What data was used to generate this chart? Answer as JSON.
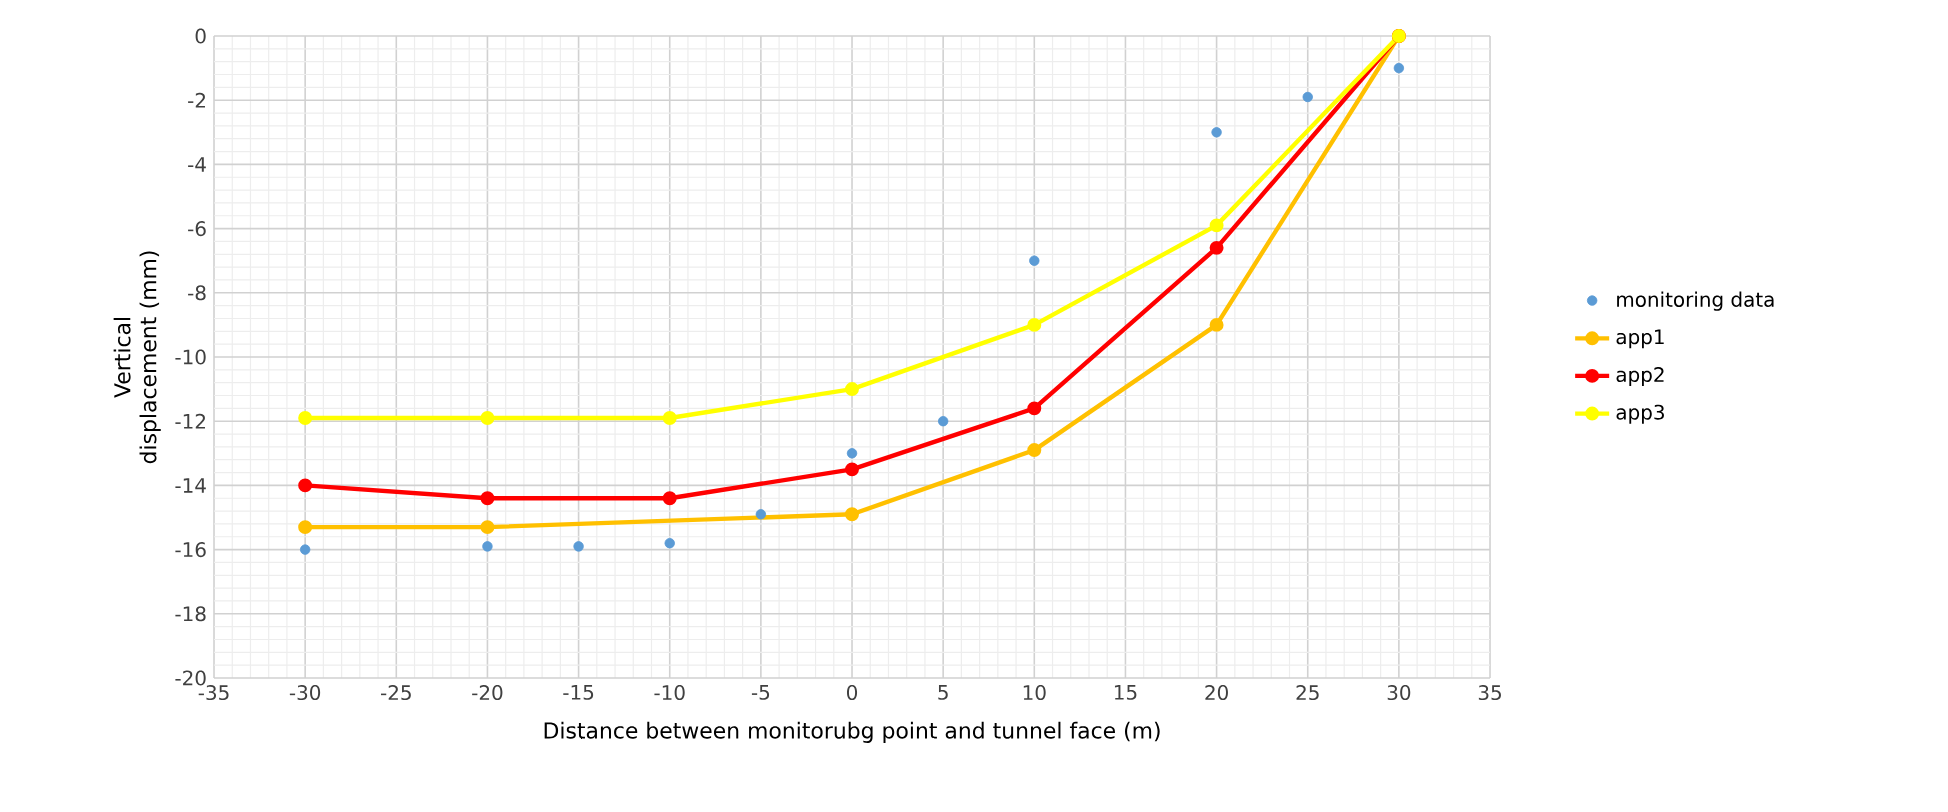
{
  "chart_data": {
    "type": "line",
    "xlabel": "Distance between monitorubg point and tunnel face (m)",
    "ylabel": "Vertical displacement (mm)",
    "xlim": [
      -35,
      35
    ],
    "xticks": [
      -35,
      -30,
      -25,
      -20,
      -15,
      -10,
      -5,
      0,
      5,
      10,
      15,
      20,
      25,
      30,
      35
    ],
    "ylim": [
      -20,
      0
    ],
    "yticks": [
      -20,
      -18,
      -16,
      -14,
      -12,
      -10,
      -8,
      -6,
      -4,
      -2,
      0
    ],
    "grid": true,
    "legend": "right",
    "marker": "circle",
    "series": [
      {
        "name": "monitoring data",
        "type": "scatter",
        "color": "#5b9bd5",
        "x": [
          -30,
          -20,
          -15,
          -10,
          -5,
          0,
          5,
          10,
          20,
          25,
          30
        ],
        "values": [
          -16,
          -15.9,
          -15.9,
          -15.8,
          -14.9,
          -13,
          -12,
          -7,
          -3,
          -1.9,
          -1
        ]
      },
      {
        "name": "app1",
        "color": "#ffc000",
        "x": [
          -30,
          -20,
          0,
          10,
          20,
          30
        ],
        "values": [
          -15.3,
          -15.3,
          -14.9,
          -12.9,
          -9,
          0
        ]
      },
      {
        "name": "app2",
        "color": "#ff0000",
        "x": [
          -30,
          -20,
          -10,
          0,
          10,
          20,
          30
        ],
        "values": [
          -14,
          -14.4,
          -14.4,
          -13.5,
          -11.6,
          -6.6,
          0
        ]
      },
      {
        "name": "app3",
        "color": "#ffff00",
        "x": [
          -30,
          -20,
          -10,
          0,
          10,
          20,
          30
        ],
        "values": [
          -11.9,
          -11.9,
          -11.9,
          -11,
          -9,
          -5.9,
          0
        ]
      }
    ]
  }
}
